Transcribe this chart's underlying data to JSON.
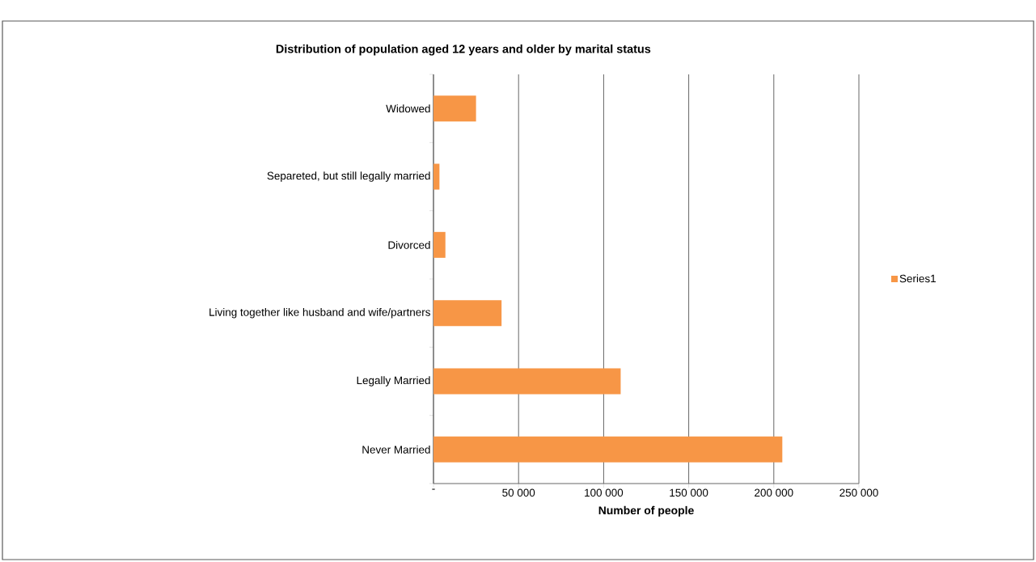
{
  "chart_data": {
    "type": "bar",
    "orientation": "horizontal",
    "title": "Distribution of population aged 12 years and older by marital status",
    "xlabel": "Number of people",
    "categories": [
      "Widowed",
      "Separeted, but still legally married",
      "Divorced",
      "Living together like husband and wife/partners",
      "Legally Married",
      "Never Married"
    ],
    "series": [
      {
        "name": "Series1",
        "color": "#f79646",
        "values": [
          25000,
          3500,
          7000,
          40000,
          110000,
          205000
        ]
      }
    ],
    "xlim": [
      0,
      250000
    ],
    "xticks": [
      {
        "value": 0,
        "label": "-"
      },
      {
        "value": 50000,
        "label": "50 000"
      },
      {
        "value": 100000,
        "label": "100 000"
      },
      {
        "value": 150000,
        "label": "150 000"
      },
      {
        "value": 200000,
        "label": "200 000"
      },
      {
        "value": 250000,
        "label": "250 000"
      }
    ],
    "grid": "x",
    "legend": "right"
  }
}
